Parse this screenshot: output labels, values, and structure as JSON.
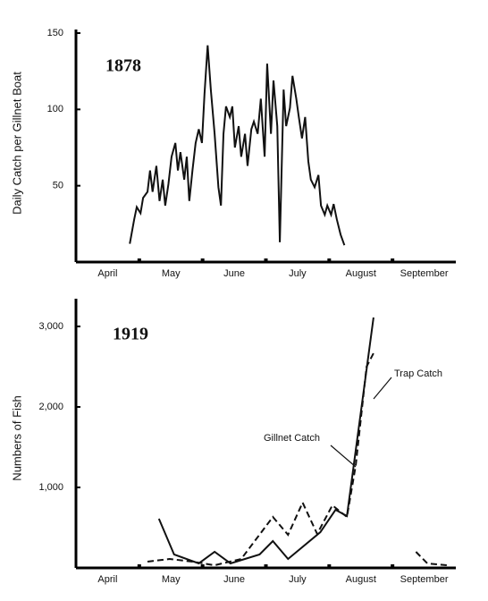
{
  "chart_data": [
    {
      "type": "line",
      "title": "1878",
      "y_label": "Daily Catch per Gillnet Boat",
      "categories": [
        "April",
        "May",
        "June",
        "July",
        "August",
        "September"
      ],
      "xlim": [
        0,
        6
      ],
      "ylim": [
        0,
        150
      ],
      "yticks": [
        50,
        100,
        150
      ],
      "series": [
        {
          "color": "#111111",
          "line_style": "solid",
          "x": [
            0.85,
            0.92,
            0.96,
            1.02,
            1.06,
            1.13,
            1.17,
            1.21,
            1.27,
            1.32,
            1.37,
            1.41,
            1.46,
            1.51,
            1.57,
            1.61,
            1.65,
            1.71,
            1.75,
            1.79,
            1.84,
            1.89,
            1.94,
            1.99,
            2.03,
            2.08,
            2.13,
            2.19,
            2.25,
            2.29,
            2.33,
            2.37,
            2.43,
            2.47,
            2.51,
            2.57,
            2.61,
            2.67,
            2.71,
            2.77,
            2.81,
            2.87,
            2.92,
            2.98,
            3.02,
            3.08,
            3.12,
            3.18,
            3.22,
            3.28,
            3.32,
            3.38,
            3.42,
            3.48,
            3.52,
            3.57,
            3.62,
            3.67,
            3.71,
            3.77,
            3.83,
            3.87,
            3.93,
            3.97,
            4.03,
            4.07,
            4.12,
            4.18,
            4.24
          ],
          "values": [
            12,
            28,
            36,
            32,
            42,
            46,
            60,
            46,
            63,
            40,
            54,
            37,
            51,
            69,
            78,
            60,
            72,
            54,
            69,
            40,
            60,
            78,
            87,
            78,
            110,
            142,
            113,
            84,
            49,
            37,
            84,
            102,
            95,
            102,
            75,
            89,
            69,
            84,
            63,
            87,
            92,
            84,
            107,
            69,
            130,
            84,
            119,
            89,
            13,
            113,
            89,
            101,
            122,
            107,
            95,
            81,
            95,
            66,
            54,
            49,
            57,
            37,
            31,
            37,
            31,
            38,
            28,
            18,
            11
          ]
        }
      ]
    },
    {
      "type": "line",
      "title": "1919",
      "y_label": "Numbers of Fish",
      "categories": [
        "April",
        "May",
        "June",
        "July",
        "August",
        "September"
      ],
      "xlim": [
        0,
        6
      ],
      "ylim": [
        0,
        3300
      ],
      "yticks": [
        {
          "value": 1000,
          "label": "1,000"
        },
        {
          "value": 2000,
          "label": "2,000"
        },
        {
          "value": 3000,
          "label": "3,000"
        }
      ],
      "series": [
        {
          "name": "Gillnet Catch",
          "color": "#111111",
          "line_style": "solid",
          "x": [
            1.31,
            1.55,
            1.94,
            2.19,
            2.44,
            2.9,
            3.11,
            3.35,
            3.86,
            4.1,
            4.28,
            4.7
          ],
          "values": [
            611,
            167,
            56,
            200,
            56,
            167,
            333,
            111,
            444,
            722,
            644,
            3111
          ]
        },
        {
          "name": "Trap Catch",
          "color": "#111111",
          "line_style": "dashed",
          "x": [
            1.13,
            1.48,
            1.84,
            2.19,
            2.61,
            3.11,
            3.35,
            3.58,
            3.81,
            4.05,
            4.28,
            4.42,
            4.59,
            4.7,
            5.0,
            5.37,
            5.55,
            5.86
          ],
          "values": [
            78,
            111,
            78,
            33,
            111,
            633,
            411,
            811,
            422,
            778,
            633,
            1278,
            2500,
            2667,
            null,
            200,
            56,
            33
          ]
        }
      ]
    }
  ]
}
